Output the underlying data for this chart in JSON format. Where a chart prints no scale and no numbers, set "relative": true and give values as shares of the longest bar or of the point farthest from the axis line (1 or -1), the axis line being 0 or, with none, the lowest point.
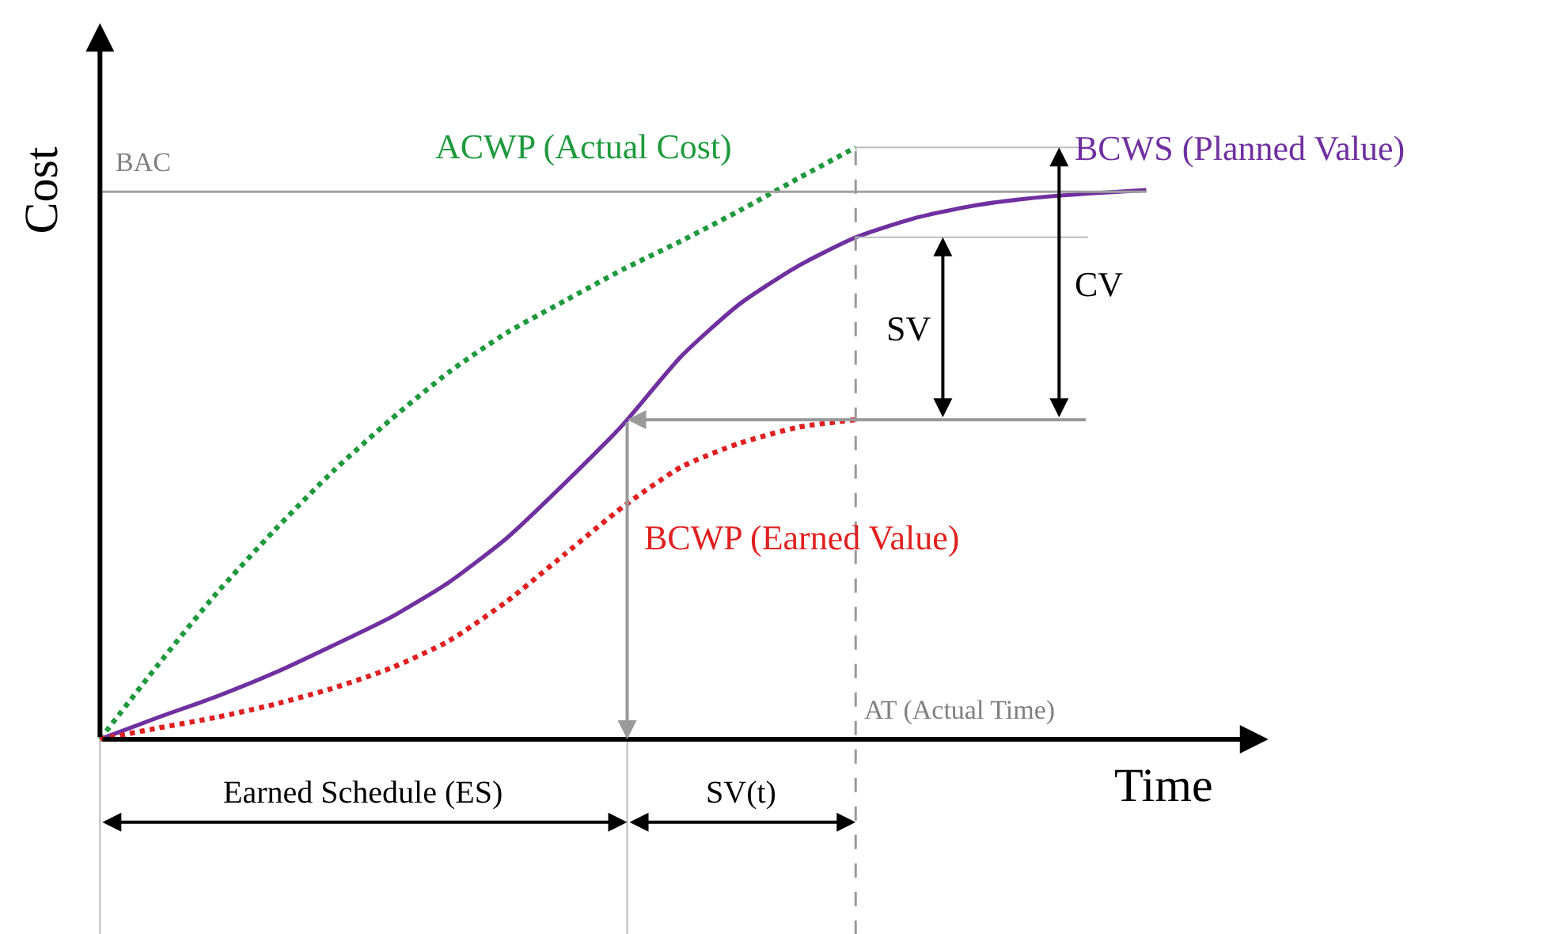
{
  "chart_data": {
    "type": "line",
    "relative": true,
    "xlabel": "Time",
    "ylabel": "Cost",
    "legend": false,
    "marker": "none",
    "categories": [
      null,
      null,
      null,
      null,
      null,
      null,
      null,
      null,
      null,
      null,
      null,
      null,
      null,
      null,
      null,
      null,
      null,
      null,
      null
    ],
    "series": [
      {
        "name": "ACWP (Actual Cost)",
        "color": "#1e9a3c",
        "line_style": "dotted",
        "values": [
          0,
          0.126,
          0.246,
          0.353,
          0.452,
          0.54,
          0.62,
          0.687,
          0.741,
          0.794,
          0.842,
          0.893,
          0.947,
          1,
          null,
          null,
          null,
          null,
          null
        ]
      },
      {
        "name": "BCWS (Planned Value)",
        "color": "#7030a0",
        "line_style": "solid",
        "values": [
          0,
          0.037,
          0.072,
          0.112,
          0.158,
          0.206,
          0.265,
          0.34,
          0.433,
          0.532,
          0.647,
          0.735,
          0.799,
          0.848,
          0.88,
          0.901,
          0.914,
          0.922,
          0.928
        ]
      },
      {
        "name": "BCWP (Earned Value)",
        "color": "#e02020",
        "line_style": "dotted",
        "values": [
          0,
          0.019,
          0.037,
          0.059,
          0.086,
          0.12,
          0.166,
          0.233,
          0.313,
          0.393,
          0.46,
          0.5,
          0.527,
          0.54,
          null,
          null,
          null,
          null,
          null
        ]
      }
    ],
    "ref_lines": [
      {
        "axis": "y",
        "value": 0.925,
        "label": "BAC",
        "color": "#a0a0a0"
      }
    ],
    "annotations": [
      "AT (Actual Time)",
      "SV",
      "CV",
      "Earned Schedule (ES)",
      "SV(t)"
    ]
  }
}
